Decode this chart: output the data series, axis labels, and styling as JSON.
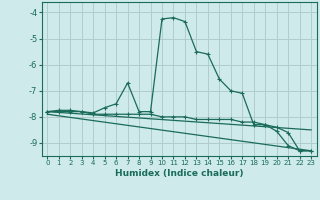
{
  "xlabel": "Humidex (Indice chaleur)",
  "bg_color": "#ceeaea",
  "grid_color": "#b0cccc",
  "line_color": "#1a6b5a",
  "xlim": [
    -0.5,
    23.5
  ],
  "ylim": [
    -9.5,
    -3.6
  ],
  "yticks": [
    -9,
    -8,
    -7,
    -6,
    -5,
    -4
  ],
  "xticks": [
    0,
    1,
    2,
    3,
    4,
    5,
    6,
    7,
    8,
    9,
    10,
    11,
    12,
    13,
    14,
    15,
    16,
    17,
    18,
    19,
    20,
    21,
    22,
    23
  ],
  "series1_x": [
    0,
    1,
    2,
    3,
    4,
    5,
    6,
    7,
    8,
    9,
    10,
    11,
    12,
    13,
    14,
    15,
    16,
    17,
    18,
    19,
    20,
    21,
    22,
    23
  ],
  "series1_y": [
    -7.8,
    -7.75,
    -7.75,
    -7.8,
    -7.85,
    -7.65,
    -7.5,
    -6.7,
    -7.8,
    -7.8,
    -4.25,
    -4.2,
    -4.35,
    -5.5,
    -5.6,
    -6.55,
    -7.0,
    -7.1,
    -8.3,
    -8.3,
    -8.55,
    -9.1,
    -9.3,
    -9.3
  ],
  "series2_x": [
    0,
    1,
    2,
    3,
    4,
    5,
    6,
    7,
    8,
    9,
    10,
    11,
    12,
    13,
    14,
    15,
    16,
    17,
    18,
    19,
    20,
    21,
    22,
    23
  ],
  "series2_y": [
    -7.8,
    -7.8,
    -7.8,
    -7.8,
    -7.9,
    -7.9,
    -7.9,
    -7.9,
    -7.9,
    -7.9,
    -8.0,
    -8.0,
    -8.0,
    -8.1,
    -8.1,
    -8.1,
    -8.1,
    -8.2,
    -8.2,
    -8.3,
    -8.4,
    -8.6,
    -9.3,
    -9.3
  ],
  "line3_x": [
    0,
    23
  ],
  "line3_y": [
    -7.8,
    -8.5
  ],
  "line4_x": [
    0,
    23
  ],
  "line4_y": [
    -7.9,
    -9.3
  ]
}
